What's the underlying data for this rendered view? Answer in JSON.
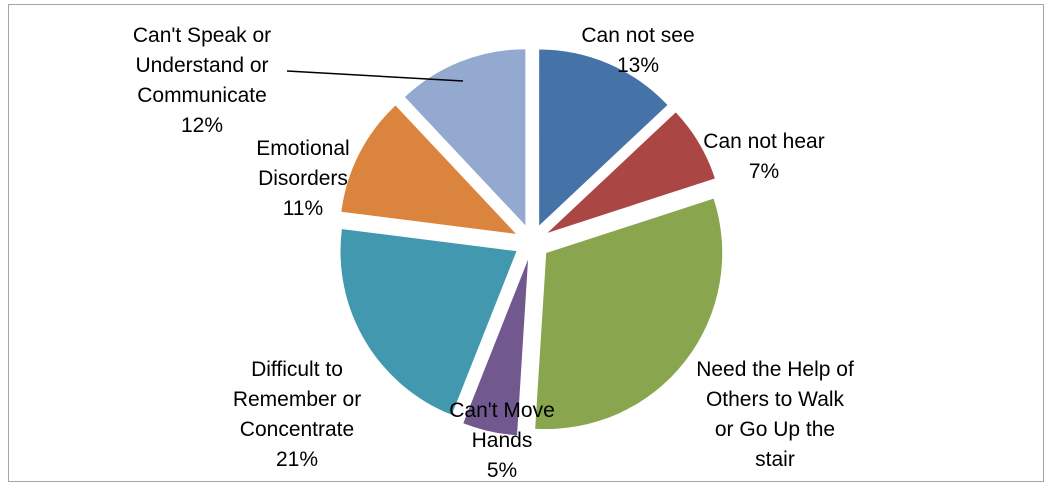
{
  "chart_data": {
    "type": "pie",
    "exploded": true,
    "start_angle_deg": 0,
    "direction": "clockwise",
    "legend": "none",
    "slices": [
      {
        "label_lines": [
          "Can not see"
        ],
        "percent_label": "13%",
        "value": 13,
        "color": "#4572A7"
      },
      {
        "label_lines": [
          "Can not hear"
        ],
        "percent_label": "7%",
        "value": 7,
        "color": "#AA4643"
      },
      {
        "label_lines": [
          "Need the Help of",
          "Others to Walk",
          "or Go Up the",
          "stair"
        ],
        "percent_label": "",
        "value": 31,
        "color": "#89A54E"
      },
      {
        "label_lines": [
          "Can't Move",
          "Hands"
        ],
        "percent_label": "5%",
        "value": 5,
        "color": "#71588F"
      },
      {
        "label_lines": [
          "Difficult to",
          "Remember or",
          "Concentrate"
        ],
        "percent_label": "21%",
        "value": 21,
        "color": "#4198AF"
      },
      {
        "label_lines": [
          "Emotional",
          "Disorders"
        ],
        "percent_label": "11%",
        "value": 11,
        "color": "#DB843D"
      },
      {
        "label_lines": [
          "Can't Speak or",
          "Understand or",
          "Communicate"
        ],
        "percent_label": "12%",
        "value": 12,
        "color": "#93A9CF"
      }
    ]
  }
}
